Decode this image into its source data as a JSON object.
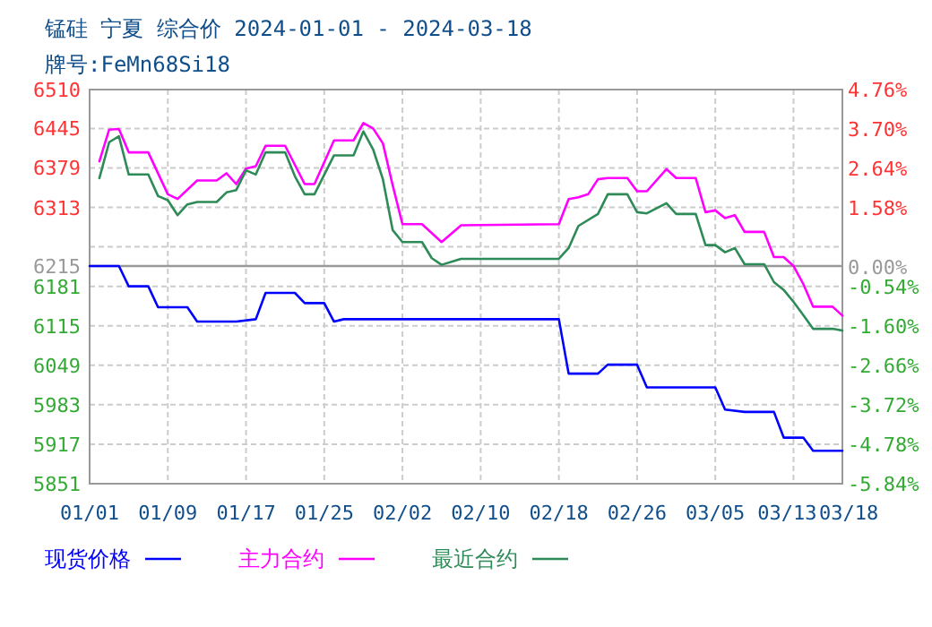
{
  "chart_data": {
    "type": "line",
    "title": "锰硅 宁夏 综合价 2024-01-01 - 2024-03-18",
    "subtitle": "牌号:FeMn68Si18",
    "xlim": [
      "2024-01-01",
      "2024-03-18"
    ],
    "xticks": [
      {
        "value": "2024-01-01",
        "label": "01/01"
      },
      {
        "value": "2024-01-09",
        "label": "01/09"
      },
      {
        "value": "2024-01-17",
        "label": "01/17"
      },
      {
        "value": "2024-01-25",
        "label": "01/25"
      },
      {
        "value": "2024-02-02",
        "label": "02/02"
      },
      {
        "value": "2024-02-10",
        "label": "02/10"
      },
      {
        "value": "2024-02-18",
        "label": "02/18"
      },
      {
        "value": "2024-02-26",
        "label": "02/26"
      },
      {
        "value": "2024-03-05",
        "label": "03/05"
      },
      {
        "value": "2024-03-13",
        "label": "03/13"
      },
      {
        "value": "2024-03-18",
        "label": "03/18"
      }
    ],
    "ylim": [
      5851,
      6510
    ],
    "yticks": [
      6510,
      6445,
      6379,
      6313,
      {
        "value": 6247,
        "label": null
      },
      6215,
      6181,
      6115,
      6049,
      5983,
      5917,
      5851
    ],
    "y2lim": [
      -5.84,
      4.76
    ],
    "y2ticks": [
      {
        "value": 4.76,
        "label": "4.76%"
      },
      {
        "value": 3.7,
        "label": "3.70%"
      },
      {
        "value": 2.64,
        "label": "2.64%"
      },
      {
        "value": 1.58,
        "label": "1.58%"
      },
      {
        "value": 0,
        "label": "0.00%"
      },
      {
        "value": -0.54,
        "label": "-0.54%"
      },
      {
        "value": -1.6,
        "label": "-1.60%"
      },
      {
        "value": -2.66,
        "label": "-2.66%"
      },
      {
        "value": -3.72,
        "label": "-3.72%"
      },
      {
        "value": -4.78,
        "label": "-4.78%"
      },
      {
        "value": -5.84,
        "label": "-5.84%"
      }
    ],
    "ref_lines": [
      {
        "axis": "y",
        "value": 6215,
        "color": "#999999"
      }
    ],
    "grid": true,
    "legend": "bottom",
    "line_style": "solid",
    "marker": "none",
    "series": [
      {
        "name": "现货价格",
        "color": "#0000ff",
        "x": [
          "2024-01-01",
          "2024-01-04",
          "2024-01-05",
          "2024-01-07",
          "2024-01-08",
          "2024-01-11",
          "2024-01-12",
          "2024-01-16",
          "2024-01-18",
          "2024-01-19",
          "2024-01-22",
          "2024-01-23",
          "2024-01-25",
          "2024-01-26",
          "2024-01-27",
          "2024-02-18",
          "2024-02-19",
          "2024-02-22",
          "2024-02-23",
          "2024-02-26",
          "2024-02-27",
          "2024-03-05",
          "2024-03-06",
          "2024-03-08",
          "2024-03-11",
          "2024-03-12",
          "2024-03-14",
          "2024-03-15",
          "2024-03-18"
        ],
        "values": [
          6215,
          6215,
          6181,
          6181,
          6146,
          6146,
          6122,
          6122,
          6126,
          6170,
          6170,
          6153,
          6153,
          6122,
          6126,
          6126,
          6035,
          6035,
          6050,
          6050,
          6012,
          6012,
          5975,
          5971,
          5971,
          5928,
          5928,
          5906,
          5906
        ]
      },
      {
        "name": "主力合约",
        "color": "#ff00ff",
        "x": [
          "2024-01-02",
          "2024-01-03",
          "2024-01-04",
          "2024-01-05",
          "2024-01-07",
          "2024-01-09",
          "2024-01-10",
          "2024-01-12",
          "2024-01-14",
          "2024-01-15",
          "2024-01-16",
          "2024-01-17",
          "2024-01-18",
          "2024-01-19",
          "2024-01-21",
          "2024-01-23",
          "2024-01-24",
          "2024-01-26",
          "2024-01-28",
          "2024-01-29",
          "2024-01-30",
          "2024-01-31",
          "2024-02-01",
          "2024-02-02",
          "2024-02-04",
          "2024-02-06",
          "2024-02-08",
          "2024-02-18",
          "2024-02-19",
          "2024-02-20",
          "2024-02-21",
          "2024-02-22",
          "2024-02-23",
          "2024-02-25",
          "2024-02-26",
          "2024-02-27",
          "2024-02-29",
          "2024-03-01",
          "2024-03-03",
          "2024-03-04",
          "2024-03-05",
          "2024-03-06",
          "2024-03-07",
          "2024-03-08",
          "2024-03-10",
          "2024-03-11",
          "2024-03-12",
          "2024-03-13",
          "2024-03-14",
          "2024-03-15",
          "2024-03-17",
          "2024-03-18"
        ],
        "values": [
          6390,
          6443,
          6444,
          6405,
          6405,
          6335,
          6327,
          6358,
          6358,
          6370,
          6352,
          6378,
          6382,
          6416,
          6416,
          6352,
          6352,
          6425,
          6425,
          6454,
          6445,
          6420,
          6350,
          6285,
          6285,
          6255,
          6283,
          6285,
          6327,
          6330,
          6335,
          6360,
          6362,
          6362,
          6340,
          6340,
          6377,
          6362,
          6362,
          6305,
          6308,
          6295,
          6300,
          6272,
          6272,
          6230,
          6230,
          6215,
          6185,
          6147,
          6147,
          6132
        ]
      },
      {
        "name": "最近合约",
        "color": "#2e8b57",
        "x": [
          "2024-01-02",
          "2024-01-03",
          "2024-01-04",
          "2024-01-05",
          "2024-01-07",
          "2024-01-08",
          "2024-01-09",
          "2024-01-10",
          "2024-01-11",
          "2024-01-12",
          "2024-01-14",
          "2024-01-15",
          "2024-01-16",
          "2024-01-17",
          "2024-01-18",
          "2024-01-19",
          "2024-01-21",
          "2024-01-22",
          "2024-01-23",
          "2024-01-24",
          "2024-01-26",
          "2024-01-28",
          "2024-01-29",
          "2024-01-30",
          "2024-01-31",
          "2024-02-01",
          "2024-02-02",
          "2024-02-04",
          "2024-02-05",
          "2024-02-06",
          "2024-02-08",
          "2024-02-18",
          "2024-02-19",
          "2024-02-20",
          "2024-02-22",
          "2024-02-23",
          "2024-02-25",
          "2024-02-26",
          "2024-02-27",
          "2024-02-29",
          "2024-03-01",
          "2024-03-03",
          "2024-03-04",
          "2024-03-05",
          "2024-03-06",
          "2024-03-07",
          "2024-03-08",
          "2024-03-10",
          "2024-03-11",
          "2024-03-12",
          "2024-03-13",
          "2024-03-14",
          "2024-03-15",
          "2024-03-17",
          "2024-03-18"
        ],
        "values": [
          6362,
          6422,
          6432,
          6368,
          6368,
          6332,
          6325,
          6300,
          6318,
          6322,
          6322,
          6338,
          6342,
          6375,
          6368,
          6405,
          6405,
          6365,
          6335,
          6335,
          6400,
          6400,
          6440,
          6410,
          6360,
          6275,
          6255,
          6255,
          6228,
          6217,
          6227,
          6227,
          6245,
          6282,
          6302,
          6335,
          6335,
          6305,
          6303,
          6320,
          6302,
          6302,
          6250,
          6250,
          6238,
          6245,
          6218,
          6218,
          6188,
          6175,
          6155,
          6133,
          6110,
          6110,
          6107
        ]
      }
    ]
  }
}
